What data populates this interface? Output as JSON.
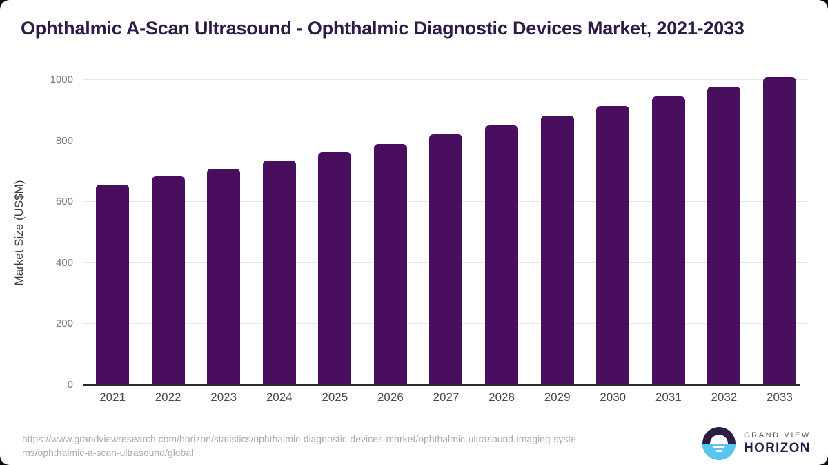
{
  "title": "Ophthalmic A-Scan Ultrasound - Ophthalmic Diagnostic Devices Market, 2021-2033",
  "chart_data": {
    "type": "bar",
    "title": "Ophthalmic A-Scan Ultrasound - Ophthalmic Diagnostic Devices Market, 2021-2033",
    "categories": [
      "2021",
      "2022",
      "2023",
      "2024",
      "2025",
      "2026",
      "2027",
      "2028",
      "2029",
      "2030",
      "2031",
      "2032",
      "2033"
    ],
    "values": [
      658,
      683,
      708,
      735,
      762,
      791,
      821,
      850,
      882,
      914,
      946,
      978,
      1010
    ],
    "xlabel": "",
    "ylabel": "Market Size (US$M)",
    "ylim": [
      0,
      1000
    ],
    "yticks": [
      0,
      200,
      400,
      600,
      800,
      1000
    ],
    "grid": true,
    "legend": "none",
    "bar_color": "#490e5e"
  },
  "footer": {
    "source_url": "https://www.grandviewresearch.com/horizon/statistics/ophthalmic-diagnostic-devices-market/ophthalmic-ultrasound-imaging-syste\nms/ophthalmic-a-scan-ultrasound/global",
    "logo": {
      "top": "GRAND VIEW",
      "bottom": "HORIZON"
    }
  },
  "colors": {
    "title": "#2e1a47",
    "bar": "#490e5e",
    "gridline": "#e7e7e7",
    "axis": "#2b2b2b",
    "y_tick": "#757575",
    "x_label": "#4a4a4a",
    "url": "#ababab",
    "logo_dark": "#2d1b45",
    "logo_blue": "#56c5f0"
  }
}
